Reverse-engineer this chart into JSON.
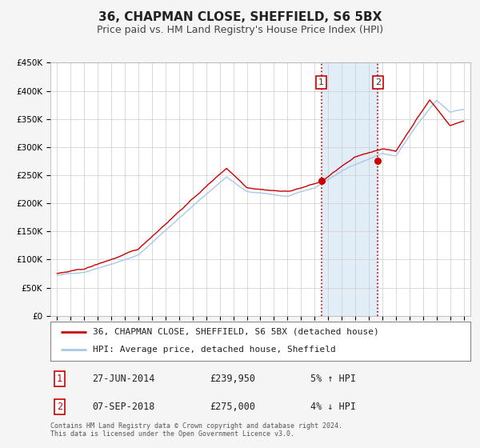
{
  "title": "36, CHAPMAN CLOSE, SHEFFIELD, S6 5BX",
  "subtitle": "Price paid vs. HM Land Registry's House Price Index (HPI)",
  "xlim": [
    1994.5,
    2025.5
  ],
  "ylim": [
    0,
    450000
  ],
  "yticks": [
    0,
    50000,
    100000,
    150000,
    200000,
    250000,
    300000,
    350000,
    400000,
    450000
  ],
  "ytick_labels": [
    "£0",
    "£50K",
    "£100K",
    "£150K",
    "£200K",
    "£250K",
    "£300K",
    "£350K",
    "£400K",
    "£450K"
  ],
  "xticks": [
    1995,
    1996,
    1997,
    1998,
    1999,
    2000,
    2001,
    2002,
    2003,
    2004,
    2005,
    2006,
    2007,
    2008,
    2009,
    2010,
    2011,
    2012,
    2013,
    2014,
    2015,
    2016,
    2017,
    2018,
    2019,
    2020,
    2021,
    2022,
    2023,
    2024,
    2025
  ],
  "hpi_color": "#a8c8e8",
  "price_color": "#cc0000",
  "vline_color": "#cc0000",
  "shade_color": "#daeaf5",
  "sale1_x": 2014.5,
  "sale1_y": 239950,
  "sale2_x": 2018.67,
  "sale2_y": 275000,
  "legend_label1": "36, CHAPMAN CLOSE, SHEFFIELD, S6 5BX (detached house)",
  "legend_label2": "HPI: Average price, detached house, Sheffield",
  "table_row1": [
    "1",
    "27-JUN-2014",
    "£239,950",
    "5% ↑ HPI"
  ],
  "table_row2": [
    "2",
    "07-SEP-2018",
    "£275,000",
    "4% ↓ HPI"
  ],
  "footer": "Contains HM Land Registry data © Crown copyright and database right 2024.\nThis data is licensed under the Open Government Licence v3.0.",
  "bg_color": "#f5f5f5",
  "plot_bg": "#ffffff",
  "grid_color": "#cccccc",
  "title_fontsize": 11,
  "subtitle_fontsize": 9,
  "tick_fontsize": 7.5,
  "legend_fontsize": 8
}
